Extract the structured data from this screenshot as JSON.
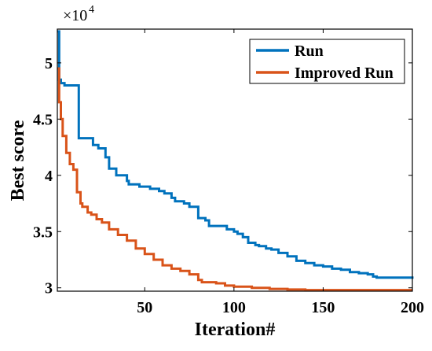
{
  "chart_data": {
    "type": "line",
    "title": "",
    "xlabel": "Iteration#",
    "ylabel": "Best score",
    "multiplier": "×10",
    "multiplier_exp": "4",
    "xlim": [
      1,
      200
    ],
    "ylim": [
      2.97,
      5.3
    ],
    "xticks": [
      50,
      100,
      150,
      200
    ],
    "xtick_labels": [
      "50",
      "100",
      "150",
      "200"
    ],
    "yticks": [
      3,
      3.5,
      4,
      4.5,
      5
    ],
    "ytick_labels": [
      "3",
      "3.5",
      "4",
      "4.5",
      "5"
    ],
    "grid": false,
    "legend_position": "top-right",
    "colors": {
      "Run": "#0072bd",
      "Improved Run": "#d95319",
      "axis": "#000000"
    },
    "series": [
      {
        "name": "Run",
        "x": [
          1,
          2,
          3,
          5,
          12,
          13,
          20,
          21,
          24,
          28,
          30,
          34,
          40,
          41,
          47,
          53,
          58,
          61,
          65,
          67,
          72,
          75,
          80,
          84,
          86,
          90,
          96,
          100,
          102,
          105,
          108,
          112,
          114,
          118,
          121,
          125,
          130,
          135,
          140,
          145,
          150,
          155,
          160,
          165,
          170,
          175,
          178,
          180,
          190,
          200
        ],
        "y": [
          5.28,
          4.85,
          4.82,
          4.8,
          4.8,
          4.33,
          4.33,
          4.27,
          4.24,
          4.16,
          4.06,
          4.0,
          3.95,
          3.92,
          3.9,
          3.88,
          3.86,
          3.84,
          3.8,
          3.77,
          3.75,
          3.72,
          3.62,
          3.6,
          3.55,
          3.55,
          3.52,
          3.5,
          3.48,
          3.45,
          3.4,
          3.38,
          3.37,
          3.35,
          3.34,
          3.31,
          3.28,
          3.24,
          3.22,
          3.2,
          3.19,
          3.17,
          3.16,
          3.14,
          3.13,
          3.12,
          3.1,
          3.09,
          3.09,
          3.08
        ]
      },
      {
        "name": "Improved Run",
        "x": [
          1,
          2,
          3,
          4,
          6,
          8,
          10,
          12,
          14,
          15,
          18,
          20,
          23,
          26,
          30,
          35,
          40,
          45,
          50,
          55,
          60,
          65,
          70,
          75,
          80,
          82,
          90,
          95,
          100,
          110,
          120,
          130,
          140,
          150,
          200
        ],
        "y": [
          4.95,
          4.65,
          4.5,
          4.35,
          4.2,
          4.1,
          4.05,
          3.85,
          3.75,
          3.72,
          3.67,
          3.65,
          3.61,
          3.58,
          3.52,
          3.47,
          3.42,
          3.35,
          3.3,
          3.25,
          3.2,
          3.17,
          3.15,
          3.12,
          3.07,
          3.05,
          3.04,
          3.02,
          3.01,
          3.0,
          2.99,
          2.985,
          2.98,
          2.98,
          2.98
        ]
      }
    ]
  }
}
